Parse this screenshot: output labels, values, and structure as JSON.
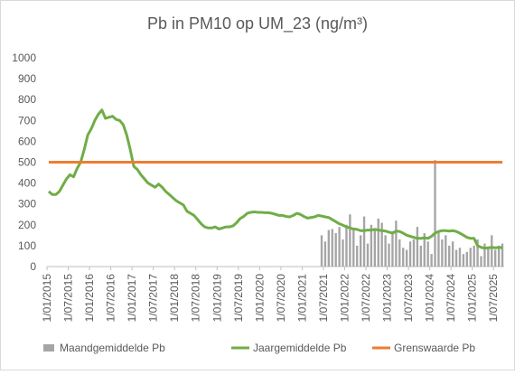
{
  "chart_data": {
    "type": "line",
    "title": "Pb in PM10 op UM_23 (ng/m³)",
    "categories": [
      "1/01/2015",
      null,
      null,
      null,
      null,
      null,
      "1/07/2015",
      null,
      null,
      null,
      null,
      null,
      "1/01/2016",
      null,
      null,
      null,
      null,
      null,
      "1/07/2016",
      null,
      null,
      null,
      null,
      null,
      "1/01/2017",
      null,
      null,
      null,
      null,
      null,
      "1/07/2017",
      null,
      null,
      null,
      null,
      null,
      "1/01/2018",
      null,
      null,
      null,
      null,
      null,
      "1/07/2018",
      null,
      null,
      null,
      null,
      null,
      "1/01/2019",
      null,
      null,
      null,
      null,
      null,
      "1/07/2019",
      null,
      null,
      null,
      null,
      null,
      "1/01/2020",
      null,
      null,
      null,
      null,
      null,
      "1/07/2020",
      null,
      null,
      null,
      null,
      null,
      "1/01/2021",
      null,
      null,
      null,
      null,
      null,
      "1/07/2021",
      null,
      null,
      null,
      null,
      null,
      "1/01/2022",
      null,
      null,
      null,
      null,
      null,
      "1/07/2022",
      null,
      null,
      null,
      null,
      null,
      "1/01/2023",
      null,
      null,
      null,
      null,
      null,
      "1/07/2023",
      null,
      null,
      null,
      null,
      null,
      "1/01/2024",
      null,
      null,
      null,
      null,
      null,
      "1/07/2024",
      null,
      null,
      null,
      null,
      null,
      "1/01/2025",
      null,
      null,
      null,
      null,
      null,
      "1/07/2025",
      null,
      null
    ],
    "series": [
      {
        "name": "Maandgemiddelde Pb",
        "type": "bar",
        "color": "#a5a5a5",
        "values": [
          null,
          null,
          null,
          null,
          null,
          null,
          null,
          null,
          null,
          null,
          null,
          null,
          null,
          null,
          null,
          null,
          null,
          null,
          null,
          null,
          null,
          null,
          null,
          null,
          null,
          null,
          null,
          null,
          null,
          null,
          null,
          null,
          null,
          null,
          null,
          null,
          null,
          null,
          null,
          null,
          null,
          null,
          null,
          null,
          null,
          null,
          null,
          null,
          null,
          null,
          null,
          null,
          null,
          null,
          null,
          null,
          null,
          null,
          null,
          null,
          null,
          null,
          null,
          null,
          null,
          null,
          null,
          null,
          null,
          null,
          null,
          null,
          null,
          null,
          null,
          null,
          null,
          150,
          120,
          175,
          180,
          160,
          190,
          130,
          200,
          250,
          180,
          100,
          150,
          240,
          110,
          200,
          180,
          230,
          210,
          150,
          110,
          170,
          220,
          130,
          90,
          80,
          120,
          130,
          190,
          100,
          160,
          120,
          60,
          510,
          170,
          130,
          150,
          100,
          120,
          80,
          90,
          60,
          70,
          90,
          100,
          130,
          50,
          110,
          90,
          150,
          80,
          100,
          110
        ]
      },
      {
        "name": "Jaargemiddelde Pb",
        "type": "line",
        "color": "#70ad47",
        "values": [
          360,
          345,
          345,
          360,
          390,
          420,
          440,
          430,
          470,
          500,
          560,
          630,
          660,
          700,
          730,
          750,
          710,
          715,
          720,
          705,
          700,
          680,
          630,
          560,
          480,
          465,
          440,
          420,
          400,
          390,
          380,
          395,
          380,
          360,
          345,
          330,
          315,
          305,
          295,
          265,
          255,
          245,
          225,
          205,
          190,
          185,
          185,
          190,
          180,
          185,
          190,
          190,
          195,
          210,
          230,
          240,
          255,
          260,
          262,
          260,
          260,
          258,
          258,
          255,
          250,
          245,
          245,
          240,
          238,
          245,
          255,
          250,
          240,
          232,
          235,
          238,
          245,
          242,
          238,
          235,
          225,
          215,
          205,
          198,
          190,
          185,
          180,
          178,
          172,
          172,
          175,
          175,
          178,
          175,
          172,
          170,
          165,
          160,
          170,
          168,
          160,
          150,
          145,
          140,
          135,
          135,
          138,
          135,
          145,
          160,
          168,
          172,
          172,
          170,
          172,
          168,
          160,
          150,
          140,
          135,
          135,
          100,
          92,
          88,
          90,
          92,
          90,
          92,
          90
        ]
      },
      {
        "name": "Grenswaarde Pb",
        "type": "line",
        "color": "#ed7d31",
        "values": [
          500,
          500,
          500,
          500,
          500,
          500,
          500,
          500,
          500,
          500,
          500,
          500,
          500,
          500,
          500,
          500,
          500,
          500,
          500,
          500,
          500,
          500,
          500,
          500,
          500,
          500,
          500,
          500,
          500,
          500,
          500,
          500,
          500,
          500,
          500,
          500,
          500,
          500,
          500,
          500,
          500,
          500,
          500,
          500,
          500,
          500,
          500,
          500,
          500,
          500,
          500,
          500,
          500,
          500,
          500,
          500,
          500,
          500,
          500,
          500,
          500,
          500,
          500,
          500,
          500,
          500,
          500,
          500,
          500,
          500,
          500,
          500,
          500,
          500,
          500,
          500,
          500,
          500,
          500,
          500,
          500,
          500,
          500,
          500,
          500,
          500,
          500,
          500,
          500,
          500,
          500,
          500,
          500,
          500,
          500,
          500,
          500,
          500,
          500,
          500,
          500,
          500,
          500,
          500,
          500,
          500,
          500,
          500,
          500,
          500,
          500,
          500,
          500,
          500,
          500,
          500,
          500,
          500,
          500,
          500,
          500,
          500,
          500,
          500,
          500,
          500,
          500,
          500,
          500
        ]
      }
    ],
    "ylim": [
      0,
      1000
    ],
    "yticks": [
      0,
      100,
      200,
      300,
      400,
      500,
      600,
      700,
      800,
      900,
      1000
    ],
    "grid": false
  }
}
